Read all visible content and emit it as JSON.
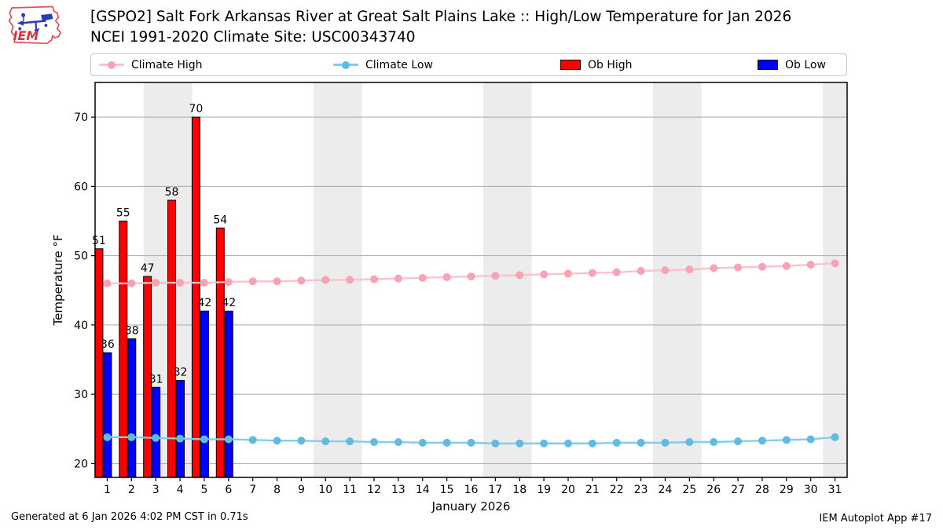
{
  "header": {
    "title_line1": "[GSPO2] Salt Fork Arkansas River at Great Salt Plains Lake :: High/Low Temperature for Jan 2026",
    "title_line2": "NCEI 1991-2020 Climate Site: USC00343740",
    "logo_text": "IEM"
  },
  "legend": [
    {
      "label": "Climate High",
      "type": "line",
      "line_color": "#fbc2cd",
      "marker_color": "#f8a3b3"
    },
    {
      "label": "Climate Low",
      "type": "line",
      "line_color": "#85cce9",
      "marker_color": "#5fbbe0"
    },
    {
      "label": "Ob High",
      "type": "swatch",
      "color": "#ff0000"
    },
    {
      "label": "Ob Low",
      "type": "swatch",
      "color": "#0000ff"
    }
  ],
  "footer": {
    "left": "Generated at 6 Jan 2026 4:02 PM CST in 0.71s",
    "right": "IEM Autoplot App #17"
  },
  "chart_data": {
    "type": "bar",
    "title": "[GSPO2] Salt Fork Arkansas River at Great Salt Plains Lake :: High/Low Temperature for Jan 2026",
    "subtitle": "NCEI 1991-2020 Climate Site: USC00343740",
    "xlabel": "January 2026",
    "ylabel": "Temperature °F",
    "xlim": [
      0.5,
      31.5
    ],
    "ylim": [
      18,
      75
    ],
    "yticks": [
      20,
      30,
      40,
      50,
      60,
      70
    ],
    "x": [
      1,
      2,
      3,
      4,
      5,
      6,
      7,
      8,
      9,
      10,
      11,
      12,
      13,
      14,
      15,
      16,
      17,
      18,
      19,
      20,
      21,
      22,
      23,
      24,
      25,
      26,
      27,
      28,
      29,
      30,
      31
    ],
    "grid": true,
    "legend_position": "top",
    "weekend_bands": [
      [
        2.5,
        4.5
      ],
      [
        9.5,
        11.5
      ],
      [
        16.5,
        18.5
      ],
      [
        23.5,
        25.5
      ],
      [
        30.5,
        31.5
      ]
    ],
    "band_color": "#ececec",
    "grid_color": "#a9a9a9",
    "series": [
      {
        "name": "Climate High",
        "type": "line",
        "line_color": "#fbc2cd",
        "marker_color": "#f8a3b3",
        "values": [
          46.0,
          46.0,
          46.1,
          46.1,
          46.1,
          46.2,
          46.3,
          46.3,
          46.4,
          46.5,
          46.5,
          46.6,
          46.7,
          46.8,
          46.9,
          47.0,
          47.1,
          47.2,
          47.3,
          47.4,
          47.5,
          47.6,
          47.8,
          47.9,
          48.0,
          48.2,
          48.3,
          48.4,
          48.5,
          48.7,
          48.9
        ]
      },
      {
        "name": "Climate Low",
        "type": "line",
        "line_color": "#85cce9",
        "marker_color": "#5fbbe0",
        "values": [
          23.8,
          23.8,
          23.7,
          23.6,
          23.5,
          23.5,
          23.4,
          23.3,
          23.3,
          23.2,
          23.2,
          23.1,
          23.1,
          23.0,
          23.0,
          23.0,
          22.9,
          22.9,
          22.9,
          22.9,
          22.9,
          23.0,
          23.0,
          23.0,
          23.1,
          23.1,
          23.2,
          23.3,
          23.4,
          23.5,
          23.8
        ]
      },
      {
        "name": "Ob High",
        "type": "bar",
        "color": "#ff0000",
        "edge_color": "#000000",
        "days": [
          1,
          2,
          3,
          4,
          5,
          6
        ],
        "values": [
          51,
          55,
          47,
          58,
          70,
          54
        ],
        "labels": [
          "51",
          "55",
          "47",
          "58",
          "70",
          "54"
        ]
      },
      {
        "name": "Ob Low",
        "type": "bar",
        "color": "#0000ff",
        "edge_color": "#000000",
        "days": [
          1,
          2,
          3,
          4,
          5,
          6
        ],
        "values": [
          36,
          38,
          31,
          32,
          42,
          42
        ],
        "labels": [
          "36",
          "38",
          "31",
          "32",
          "42",
          "42"
        ]
      }
    ]
  }
}
